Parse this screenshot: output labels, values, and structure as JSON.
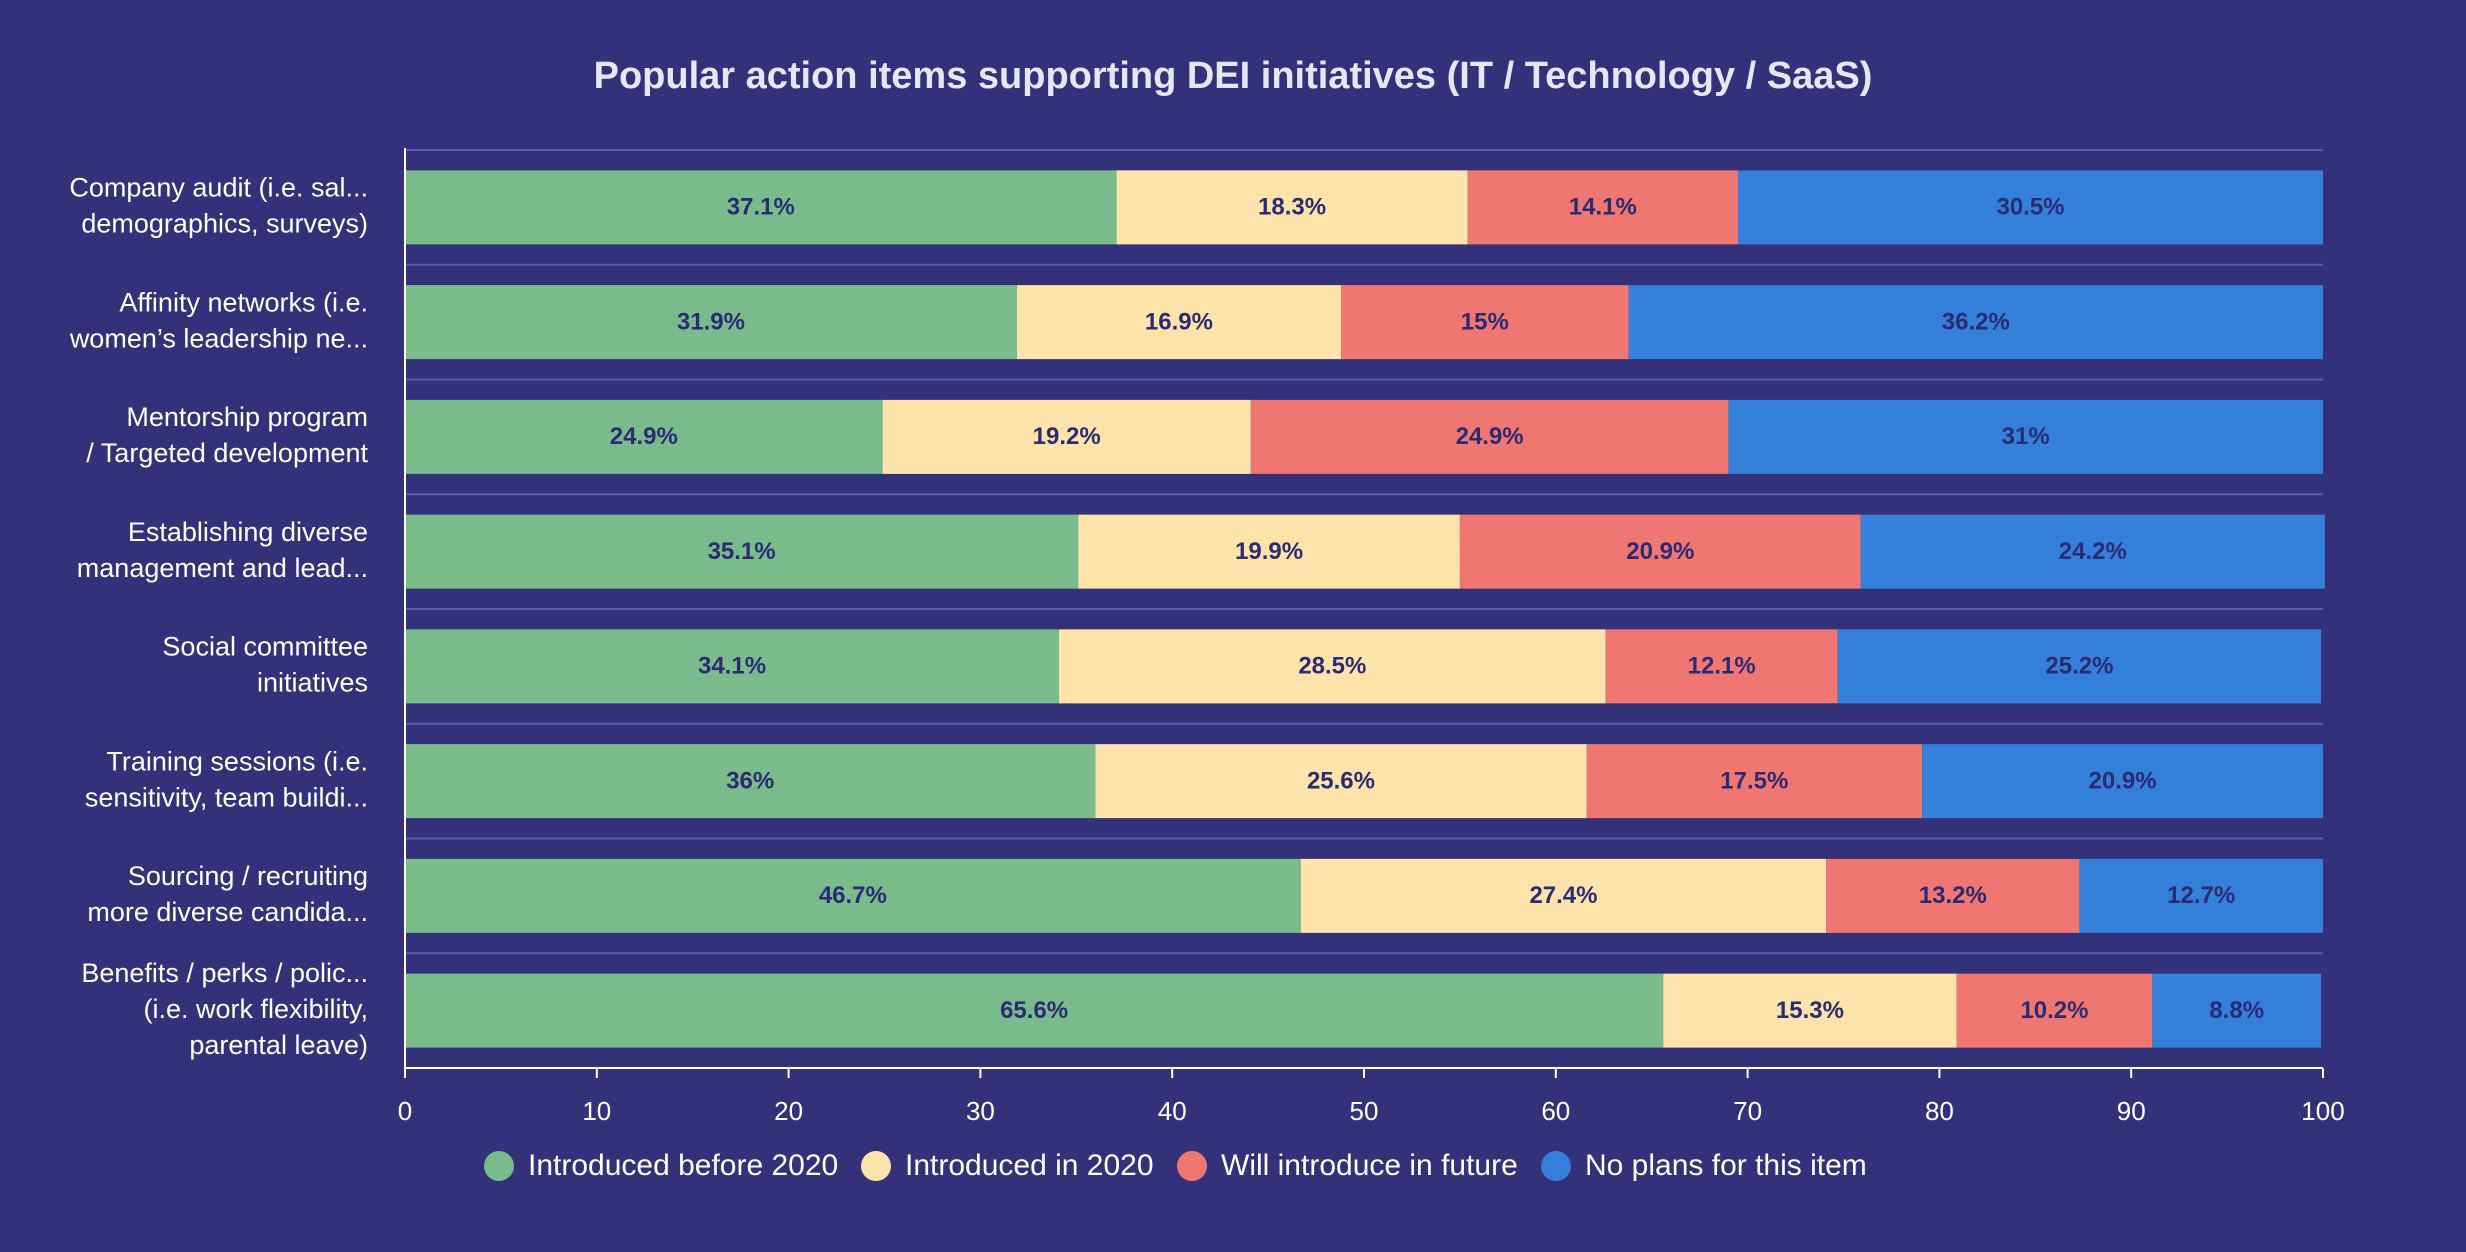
{
  "chart_data": {
    "type": "bar",
    "orientation": "horizontal",
    "stacked": true,
    "title": "Popular action items supporting DEI initiatives (IT / Technology / SaaS)",
    "categories": [
      [
        "Company audit (i.e. sal...",
        "demographics, surveys)"
      ],
      [
        "Affinity networks (i.e.",
        "women’s leadership ne..."
      ],
      [
        "Mentorship program",
        "/ Targeted development"
      ],
      [
        "Establishing diverse",
        "management and lead..."
      ],
      [
        "Social committee",
        "initiatives"
      ],
      [
        "Training sessions (i.e.",
        "sensitivity, team buildi..."
      ],
      [
        "Sourcing / recruiting",
        "more diverse candida..."
      ],
      [
        "Benefits / perks / polic...",
        "(i.e. work flexibility,",
        "parental leave)"
      ]
    ],
    "series": [
      {
        "name": "Introduced before 2020",
        "color": "#79bb8b",
        "values": [
          37.1,
          31.9,
          24.9,
          35.1,
          34.1,
          36,
          46.7,
          65.6
        ],
        "labels": [
          "37.1%",
          "31.9%",
          "24.9%",
          "35.1%",
          "34.1%",
          "36%",
          "46.7%",
          "65.6%"
        ]
      },
      {
        "name": "Introduced in 2020",
        "color": "#fee4ab",
        "values": [
          18.3,
          16.9,
          19.2,
          19.9,
          28.5,
          25.6,
          27.4,
          15.3
        ],
        "labels": [
          "18.3%",
          "16.9%",
          "19.2%",
          "19.9%",
          "28.5%",
          "25.6%",
          "27.4%",
          "15.3%"
        ]
      },
      {
        "name": "Will introduce in future",
        "color": "#f07672",
        "values": [
          14.1,
          15,
          24.9,
          20.9,
          12.1,
          17.5,
          13.2,
          10.2
        ],
        "labels": [
          "14.1%",
          "15%",
          "24.9%",
          "20.9%",
          "12.1%",
          "17.5%",
          "13.2%",
          "10.2%"
        ]
      },
      {
        "name": "No plans for this item",
        "color": "#347fd9",
        "values": [
          30.5,
          36.2,
          31,
          24.2,
          25.2,
          20.9,
          12.7,
          8.8
        ],
        "labels": [
          "30.5%",
          "36.2%",
          "31%",
          "24.2%",
          "25.2%",
          "20.9%",
          "12.7%",
          "8.8%"
        ]
      }
    ],
    "xlim": [
      0,
      100
    ],
    "xticks": [
      0,
      10,
      20,
      30,
      40,
      50,
      60,
      70,
      80,
      90,
      100
    ],
    "xlabel": "",
    "ylabel": "",
    "legend_position": "bottom",
    "grid": true,
    "colors": {
      "background": "#32317a",
      "grid": "#5a5aa8",
      "axis": "#ffffff",
      "data_label": "#2b2b73"
    }
  }
}
